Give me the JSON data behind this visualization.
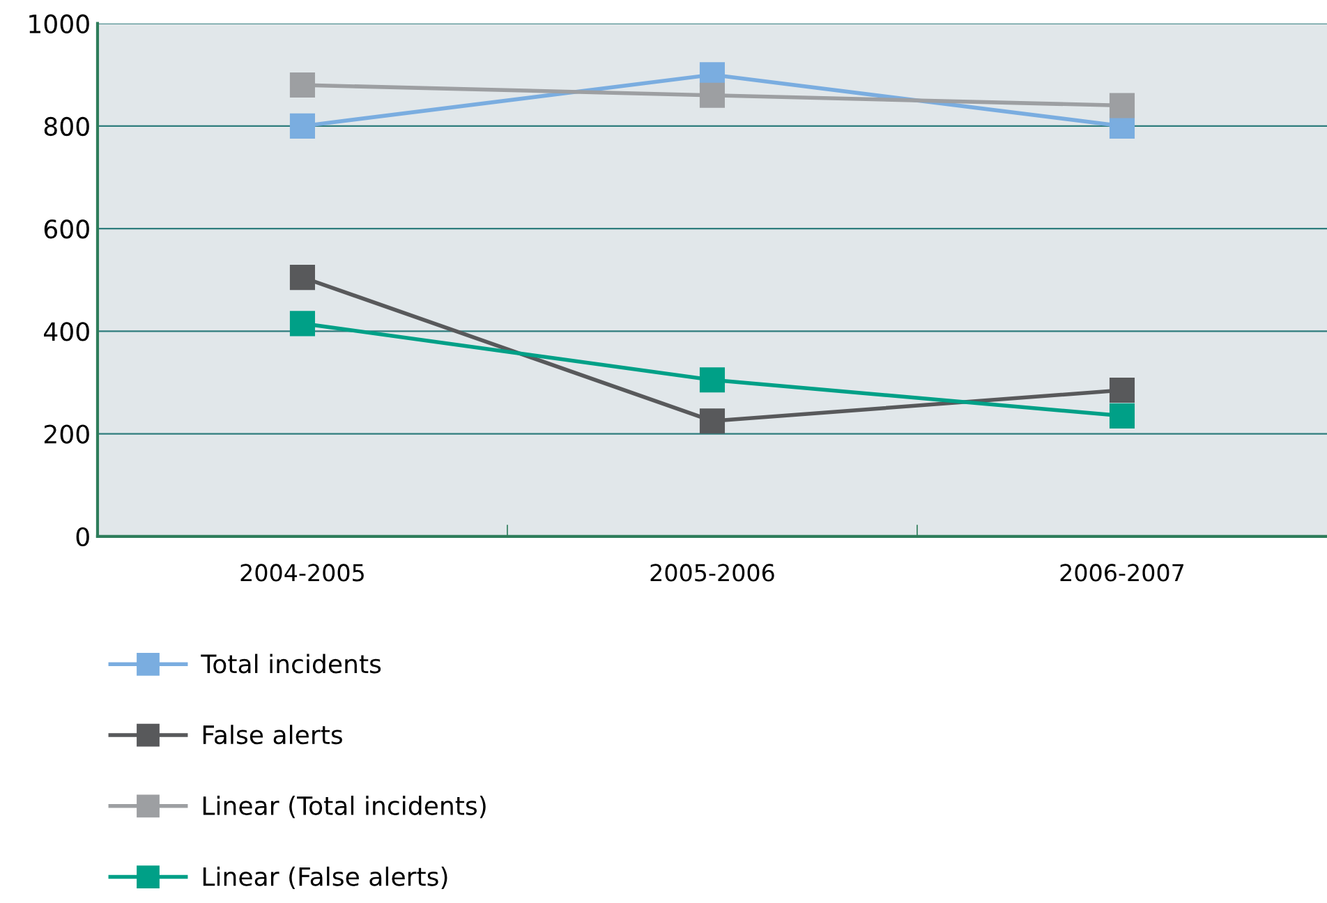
{
  "chart_data": {
    "type": "line",
    "categories": [
      "2004-2005",
      "2005-2006",
      "2006-2007"
    ],
    "series": [
      {
        "name": "Total incidents",
        "color": "#7aade0",
        "values": [
          800,
          900,
          800
        ]
      },
      {
        "name": "False alerts",
        "color": "#58595b",
        "values": [
          505,
          225,
          285
        ]
      },
      {
        "name": "Linear (Total incidents)",
        "color": "#9d9fa2",
        "values": [
          880,
          860,
          840
        ]
      },
      {
        "name": "Linear (False alerts)",
        "color": "#00a087",
        "values": [
          415,
          305,
          235
        ]
      }
    ],
    "ylim": [
      0,
      1000
    ],
    "yticks": [
      0,
      200,
      400,
      600,
      800,
      1000
    ],
    "grid": "y",
    "legend": "bottom",
    "marker": "square",
    "line_style": "solid"
  }
}
